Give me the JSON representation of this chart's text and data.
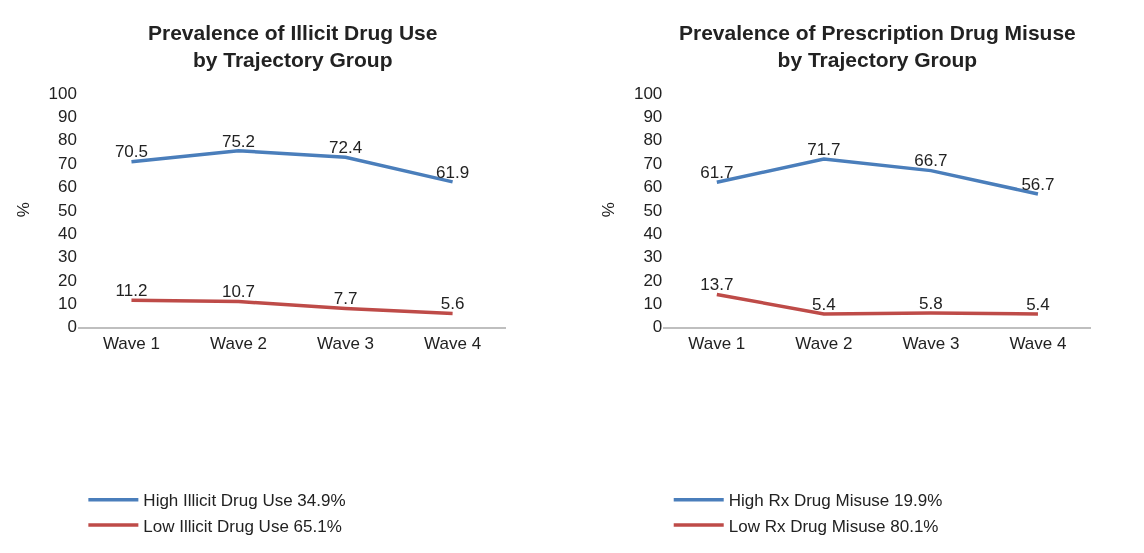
{
  "chart_data": [
    {
      "type": "line",
      "title": "Prevalence of Illicit Drug Use\nby Trajectory Group",
      "ylabel": "%",
      "categories": [
        "Wave 1",
        "Wave 2",
        "Wave 3",
        "Wave 4"
      ],
      "series": [
        {
          "name": "High Illicit Drug Use 34.9%",
          "color": "#4a7ebb",
          "values": [
            70.5,
            75.2,
            72.4,
            61.9
          ]
        },
        {
          "name": "Low Illicit Drug Use 65.1%",
          "color": "#be4b48",
          "values": [
            11.2,
            10.7,
            7.7,
            5.6
          ]
        }
      ],
      "ylim": [
        0,
        100
      ],
      "yticks": [
        0,
        10,
        20,
        30,
        40,
        50,
        60,
        70,
        80,
        90,
        100
      ],
      "data_labels": true,
      "legend": "bottom",
      "grid": false,
      "marker": "none",
      "line_style": "solid"
    },
    {
      "type": "line",
      "title": "Prevalence of Prescription Drug Misuse\nby Trajectory Group",
      "ylabel": "%",
      "categories": [
        "Wave 1",
        "Wave 2",
        "Wave 3",
        "Wave 4"
      ],
      "series": [
        {
          "name": "High Rx Drug Misuse 19.9%",
          "color": "#4a7ebb",
          "values": [
            61.7,
            71.7,
            66.7,
            56.7
          ]
        },
        {
          "name": "Low Rx Drug Misuse 80.1%",
          "color": "#be4b48",
          "values": [
            13.7,
            5.4,
            5.8,
            5.4
          ]
        }
      ],
      "ylim": [
        0,
        100
      ],
      "yticks": [
        0,
        10,
        20,
        30,
        40,
        50,
        60,
        70,
        80,
        90,
        100
      ],
      "data_labels": true,
      "legend": "bottom",
      "grid": false,
      "marker": "none",
      "line_style": "solid"
    }
  ]
}
